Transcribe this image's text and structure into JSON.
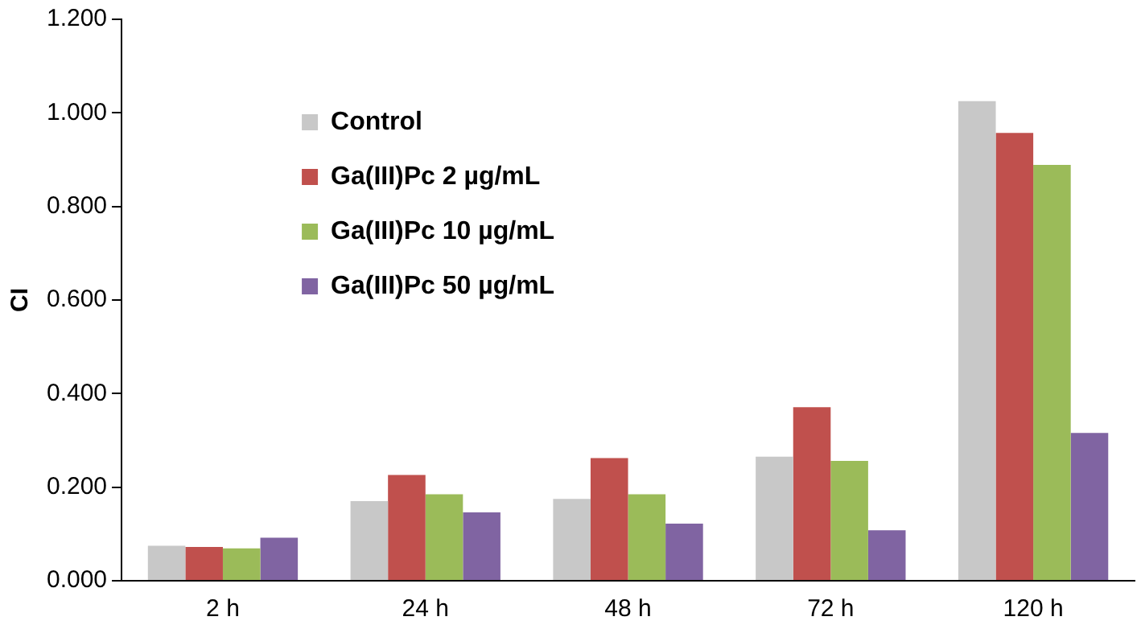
{
  "chart_data": {
    "type": "bar",
    "ylabel": "CI",
    "categories": [
      "2 h",
      "24 h",
      "48 h",
      "72 h",
      "120 h"
    ],
    "series": [
      {
        "name": "Control",
        "color": "#c8c8c8",
        "values": [
          0.075,
          0.17,
          0.175,
          0.265,
          1.025
        ]
      },
      {
        "name": "Ga(III)Pc 2 µg/mL",
        "color": "#c0504d",
        "values": [
          0.072,
          0.226,
          0.262,
          0.371,
          0.957
        ]
      },
      {
        "name": "Ga(III)Pc 10 µg/mL",
        "color": "#9bbb59",
        "values": [
          0.069,
          0.185,
          0.185,
          0.256,
          0.889
        ]
      },
      {
        "name": "Ga(III)Pc 50 µg/mL",
        "color": "#8064a2",
        "values": [
          0.092,
          0.146,
          0.122,
          0.108,
          0.316
        ]
      }
    ],
    "ylim": [
      0,
      1.2
    ],
    "yticks": [
      {
        "value": 0,
        "label": "0.000"
      },
      {
        "value": 0.2,
        "label": "0.200"
      },
      {
        "value": 0.4,
        "label": "0.400"
      },
      {
        "value": 0.6,
        "label": "0.600"
      },
      {
        "value": 0.8,
        "label": "0.800"
      },
      {
        "value": 1.0,
        "label": "1.000"
      },
      {
        "value": 1.2,
        "label": "1.200"
      }
    ],
    "grid": false,
    "legend": "top left"
  }
}
